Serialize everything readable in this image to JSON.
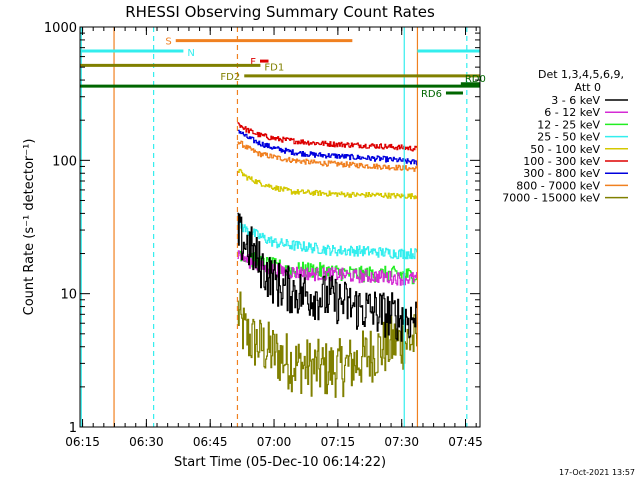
{
  "title": "RHESSI Observing Summary Count Rates",
  "timestamp": "17-Oct-2021 13:57",
  "legend": {
    "header_lines": [
      "Det 1,3,4,5,6,9,",
      "Att 0"
    ],
    "entries": [
      {
        "label": "3 - 6 keV",
        "color": "#000000"
      },
      {
        "label": "6 - 12 keV",
        "color": "#d42bd4"
      },
      {
        "label": "12 - 25 keV",
        "color": "#22ee22"
      },
      {
        "label": "25 - 50 keV",
        "color": "#33eeee"
      },
      {
        "label": "50 - 100 keV",
        "color": "#d4c800"
      },
      {
        "label": "100 - 300 keV",
        "color": "#dd0000"
      },
      {
        "label": "300 - 800 keV",
        "color": "#0000dd"
      },
      {
        "label": "800 - 7000 keV",
        "color": "#f08020"
      },
      {
        "label": "7000 - 15000 keV",
        "color": "#808000"
      }
    ]
  },
  "flags": [
    {
      "label": "S",
      "start": 22.5,
      "end": 64,
      "y": 790,
      "color": "#f08020",
      "label_pos": "left"
    },
    {
      "label": "N",
      "start": 0,
      "end": 24.3,
      "y": 660,
      "color": "#33eeee",
      "label_pos": "right-start"
    },
    {
      "label": "N",
      "start": 79.3,
      "end": 94,
      "y": 660,
      "color": "#33eeee",
      "label_pos": "none"
    },
    {
      "label": "F",
      "start": 42.3,
      "end": 44.3,
      "y": 555,
      "color": "#dd0000",
      "label_pos": "left"
    },
    {
      "label": "FD1",
      "start": 0,
      "end": 42.4,
      "y": 515,
      "color": "#808000",
      "label_pos": "right-end"
    },
    {
      "label": "FD2",
      "start": 38.6,
      "end": 94,
      "y": 430,
      "color": "#808000",
      "label_pos": "left"
    },
    {
      "label": "RD6",
      "start": 0,
      "end": 94,
      "y": 360,
      "color": "#006600",
      "label_pos": "none"
    },
    {
      "label": "RD6",
      "start": 86,
      "end": 90,
      "y": 320,
      "color": "#006600",
      "label_pos": "left"
    },
    {
      "label": "RD0",
      "start": 89.5,
      "end": 94,
      "y": 375,
      "color": "#006600",
      "label_pos": "above-only"
    }
  ],
  "chart_data": {
    "type": "line",
    "title": "RHESSI Observing Summary Count Rates",
    "xlabel": "Start Time (05-Dec-10 06:14:22)",
    "ylabel": "Count Rate (s⁻¹ detector⁻¹)",
    "x_unit": "minutes after 06:14:22",
    "xlim": [
      0,
      94
    ],
    "ylim": [
      1,
      1000
    ],
    "y_scale": "log",
    "x_ticks": [
      {
        "t": 0.6,
        "label": "06:15"
      },
      {
        "t": 15.6,
        "label": "06:30"
      },
      {
        "t": 30.6,
        "label": "06:45"
      },
      {
        "t": 45.6,
        "label": "07:00"
      },
      {
        "t": 60.6,
        "label": "07:15"
      },
      {
        "t": 75.6,
        "label": "07:30"
      },
      {
        "t": 90.6,
        "label": "07:45"
      }
    ],
    "y_ticks": [
      {
        "v": 1,
        "label": "1"
      },
      {
        "v": 10,
        "label": "10"
      },
      {
        "v": 100,
        "label": "100"
      },
      {
        "v": 1000,
        "label": "1000"
      }
    ],
    "vlines": [
      {
        "t": 0.3,
        "color": "#33eeee",
        "dash": false
      },
      {
        "t": 8.0,
        "color": "#f08020",
        "dash": false
      },
      {
        "t": 17.3,
        "color": "#33eeee",
        "dash": true
      },
      {
        "t": 37.0,
        "color": "#f08020",
        "dash": true
      },
      {
        "t": 76.2,
        "color": "#33eeee",
        "dash": false
      },
      {
        "t": 79.3,
        "color": "#f08020",
        "dash": false
      },
      {
        "t": 90.9,
        "color": "#33eeee",
        "dash": true
      }
    ],
    "data_window": [
      37.0,
      79.3
    ],
    "series": [
      {
        "name": "3 - 6 keV",
        "color": "#000000",
        "t": [
          37,
          38,
          40,
          42,
          44,
          46,
          48,
          52,
          56,
          60,
          64,
          68,
          72,
          76,
          79.3
        ],
        "v": [
          28,
          25,
          22,
          17,
          14,
          12,
          11,
          10,
          9.5,
          9,
          8,
          7.5,
          7,
          6.5,
          6.5
        ],
        "noise": 0.18
      },
      {
        "name": "6 - 12 keV",
        "color": "#d42bd4",
        "t": [
          37,
          39,
          42,
          46,
          50,
          55,
          60,
          65,
          70,
          75,
          79.3
        ],
        "v": [
          20,
          18,
          16,
          15,
          14.5,
          14,
          14,
          13.5,
          13.5,
          13,
          13
        ],
        "noise": 0.05
      },
      {
        "name": "12 - 25 keV",
        "color": "#22ee22",
        "t": [
          37,
          39,
          42,
          46,
          50,
          55,
          60,
          65,
          70,
          75,
          79.3
        ],
        "v": [
          21,
          19,
          17,
          16,
          15,
          15,
          14.5,
          14,
          14,
          14,
          13.5
        ],
        "noise": 0.06
      },
      {
        "name": "25 - 50 keV",
        "color": "#33eeee",
        "t": [
          37,
          39,
          42,
          46,
          50,
          55,
          60,
          65,
          70,
          75,
          79.3
        ],
        "v": [
          34,
          30,
          27,
          24,
          23,
          22,
          21,
          21,
          20.5,
          20,
          20
        ],
        "noise": 0.04
      },
      {
        "name": "50 - 100 keV",
        "color": "#d4c800",
        "t": [
          37,
          39,
          42,
          46,
          50,
          55,
          60,
          65,
          70,
          75,
          79.3
        ],
        "v": [
          85,
          75,
          68,
          62,
          58,
          57,
          56,
          55,
          55,
          54,
          54
        ],
        "noise": 0.02
      },
      {
        "name": "100 - 300 keV",
        "color": "#dd0000",
        "t": [
          37,
          39,
          42,
          46,
          50,
          55,
          60,
          65,
          70,
          75,
          79.3
        ],
        "v": [
          190,
          170,
          155,
          145,
          140,
          135,
          132,
          130,
          128,
          125,
          122
        ],
        "noise": 0.02
      },
      {
        "name": "300 - 800 keV",
        "color": "#0000dd",
        "t": [
          37,
          39,
          42,
          46,
          50,
          55,
          60,
          65,
          70,
          75,
          79.3
        ],
        "v": [
          170,
          150,
          135,
          122,
          115,
          110,
          108,
          105,
          103,
          100,
          96
        ],
        "noise": 0.02
      },
      {
        "name": "800 - 7000 keV",
        "color": "#f08020",
        "t": [
          37,
          39,
          42,
          46,
          50,
          55,
          60,
          65,
          70,
          75,
          79.3
        ],
        "v": [
          140,
          125,
          112,
          105,
          100,
          96,
          94,
          92,
          90,
          88,
          86
        ],
        "noise": 0.02
      },
      {
        "name": "7000 - 15000 keV",
        "color": "#808000",
        "t": [
          37,
          38,
          40,
          43,
          46,
          50,
          54,
          58,
          62,
          66,
          70,
          74,
          79.3
        ],
        "v": [
          7.5,
          5.5,
          4.5,
          4,
          3.5,
          3,
          2.8,
          2.7,
          2.8,
          3.2,
          3.8,
          4.3,
          4.5
        ],
        "noise": 0.22
      }
    ]
  }
}
